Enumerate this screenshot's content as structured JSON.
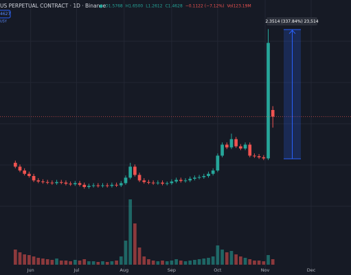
{
  "chart_data": {
    "type": "candlestick",
    "title": "US PERPETUAL CONTRACT · 1D · Binance",
    "ohlc": [
      "O1.5768",
      "H1.6500",
      "L1.2612",
      "C1.4628",
      "−0.1122 (−7.12%)",
      "Vol123.19M"
    ],
    "badges": [
      "4627",
      "USY"
    ],
    "annotation": "2.3514 (337.84%) 23,514",
    "x": [
      -10,
      -7,
      -4,
      -1,
      2,
      5,
      8,
      11,
      14,
      17,
      20,
      23,
      26,
      29,
      32,
      35,
      38,
      41,
      44,
      47,
      50,
      53,
      56,
      59,
      62,
      65,
      68,
      71,
      74,
      77,
      80,
      83,
      86,
      89,
      92,
      95,
      98,
      101,
      104,
      107,
      110,
      113,
      116,
      119,
      122,
      125,
      128,
      131,
      134,
      137,
      140,
      143,
      146,
      149,
      152,
      155,
      158
    ],
    "open": [
      0.62,
      0.55,
      0.48,
      0.42,
      0.38,
      0.3,
      0.28,
      0.27,
      0.26,
      0.25,
      0.27,
      0.26,
      0.24,
      0.23,
      0.25,
      0.22,
      0.18,
      0.2,
      0.21,
      0.2,
      0.21,
      0.2,
      0.22,
      0.21,
      0.25,
      0.35,
      0.55,
      0.4,
      0.3,
      0.27,
      0.26,
      0.25,
      0.26,
      0.24,
      0.25,
      0.28,
      0.31,
      0.29,
      0.3,
      0.33,
      0.35,
      0.36,
      0.38,
      0.42,
      0.48,
      0.75,
      0.95,
      0.9,
      1.05,
      0.92,
      0.88,
      0.95,
      0.75,
      0.74,
      0.72,
      0.7,
      1.58
    ],
    "high": [
      0.66,
      0.59,
      0.52,
      0.46,
      0.42,
      0.34,
      0.32,
      0.31,
      0.3,
      0.31,
      0.31,
      0.3,
      0.28,
      0.29,
      0.29,
      0.26,
      0.24,
      0.25,
      0.25,
      0.25,
      0.25,
      0.26,
      0.26,
      0.29,
      0.39,
      0.62,
      0.59,
      0.44,
      0.34,
      0.31,
      0.3,
      0.3,
      0.3,
      0.28,
      0.32,
      0.35,
      0.35,
      0.34,
      0.37,
      0.39,
      0.4,
      0.42,
      0.46,
      0.52,
      0.79,
      0.99,
      0.99,
      1.15,
      1.09,
      0.96,
      0.99,
      0.99,
      0.79,
      0.78,
      0.76,
      3.05,
      1.65
    ],
    "low": [
      0.52,
      0.45,
      0.39,
      0.35,
      0.27,
      0.25,
      0.24,
      0.23,
      0.22,
      0.22,
      0.23,
      0.21,
      0.2,
      0.2,
      0.19,
      0.15,
      0.15,
      0.17,
      0.17,
      0.17,
      0.17,
      0.17,
      0.18,
      0.18,
      0.22,
      0.32,
      0.37,
      0.27,
      0.24,
      0.23,
      0.22,
      0.22,
      0.21,
      0.21,
      0.22,
      0.25,
      0.26,
      0.26,
      0.27,
      0.3,
      0.32,
      0.33,
      0.35,
      0.39,
      0.45,
      0.72,
      0.87,
      0.87,
      0.89,
      0.85,
      0.85,
      0.72,
      0.71,
      0.69,
      0.67,
      0.67,
      1.26
    ],
    "close": [
      0.55,
      0.48,
      0.42,
      0.38,
      0.3,
      0.28,
      0.27,
      0.26,
      0.25,
      0.27,
      0.26,
      0.24,
      0.23,
      0.25,
      0.22,
      0.18,
      0.2,
      0.21,
      0.2,
      0.21,
      0.2,
      0.22,
      0.21,
      0.25,
      0.35,
      0.55,
      0.4,
      0.3,
      0.27,
      0.26,
      0.25,
      0.26,
      0.24,
      0.25,
      0.28,
      0.31,
      0.29,
      0.3,
      0.33,
      0.35,
      0.36,
      0.38,
      0.42,
      0.48,
      0.75,
      0.95,
      0.9,
      1.05,
      0.92,
      0.88,
      0.95,
      0.75,
      0.74,
      0.72,
      0.7,
      2.8,
      1.46
    ],
    "volume": [
      22,
      18,
      15,
      14,
      12,
      10,
      9,
      8,
      7,
      9,
      6,
      6,
      5,
      7,
      6,
      8,
      5,
      5,
      4,
      5,
      4,
      5,
      6,
      12,
      35,
      95,
      60,
      25,
      12,
      8,
      6,
      5,
      6,
      5,
      6,
      8,
      6,
      5,
      6,
      7,
      8,
      9,
      10,
      12,
      28,
      22,
      18,
      20,
      15,
      12,
      10,
      8,
      6,
      6,
      5,
      14,
      8
    ],
    "xlim": [
      -20,
      209
    ],
    "ylim": [
      -1.42,
      3.58
    ],
    "volume_lim": [
      0,
      100
    ],
    "xticks": [
      {
        "value": 0,
        "label": "Jun"
      },
      {
        "value": 30,
        "label": "Jul"
      },
      {
        "value": 61,
        "label": "Aug"
      },
      {
        "value": 92,
        "label": "Sep"
      },
      {
        "value": 122,
        "label": "Oct"
      },
      {
        "value": 153,
        "label": "Nov"
      },
      {
        "value": 183,
        "label": "Dec"
      }
    ],
    "up_color": "#26a69a",
    "down_color": "#ef5350",
    "grid": true
  }
}
